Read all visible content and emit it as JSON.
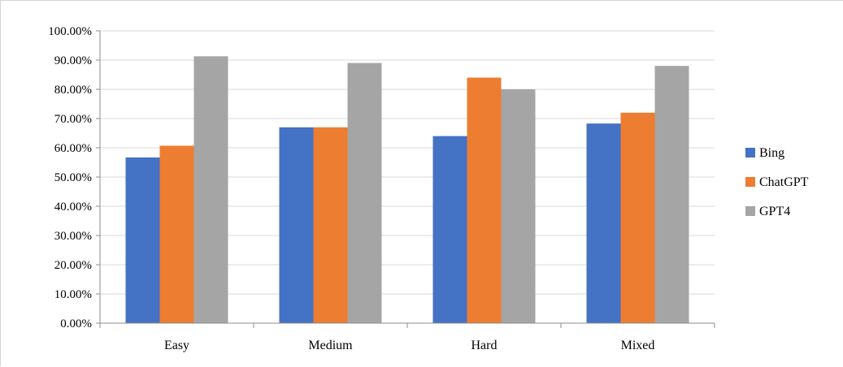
{
  "chart_data": {
    "type": "bar",
    "categories": [
      "Easy",
      "Medium",
      "Hard",
      "Mixed"
    ],
    "series": [
      {
        "name": "Bing",
        "color": "#4472C4",
        "values": [
          0.567,
          0.67,
          0.64,
          0.683
        ]
      },
      {
        "name": "ChatGPT",
        "color": "#ED7D31",
        "values": [
          0.607,
          0.67,
          0.84,
          0.72
        ]
      },
      {
        "name": "GPT4",
        "color": "#A5A5A5",
        "values": [
          0.913,
          0.89,
          0.8,
          0.88
        ]
      }
    ],
    "ylim": [
      0,
      1
    ],
    "yticks": [
      "0.00%",
      "10.00%",
      "20.00%",
      "30.00%",
      "40.00%",
      "50.00%",
      "60.00%",
      "70.00%",
      "80.00%",
      "90.00%",
      "100.00%"
    ],
    "grid": true,
    "legend_position": "right",
    "title": "",
    "xlabel": "",
    "ylabel": ""
  }
}
